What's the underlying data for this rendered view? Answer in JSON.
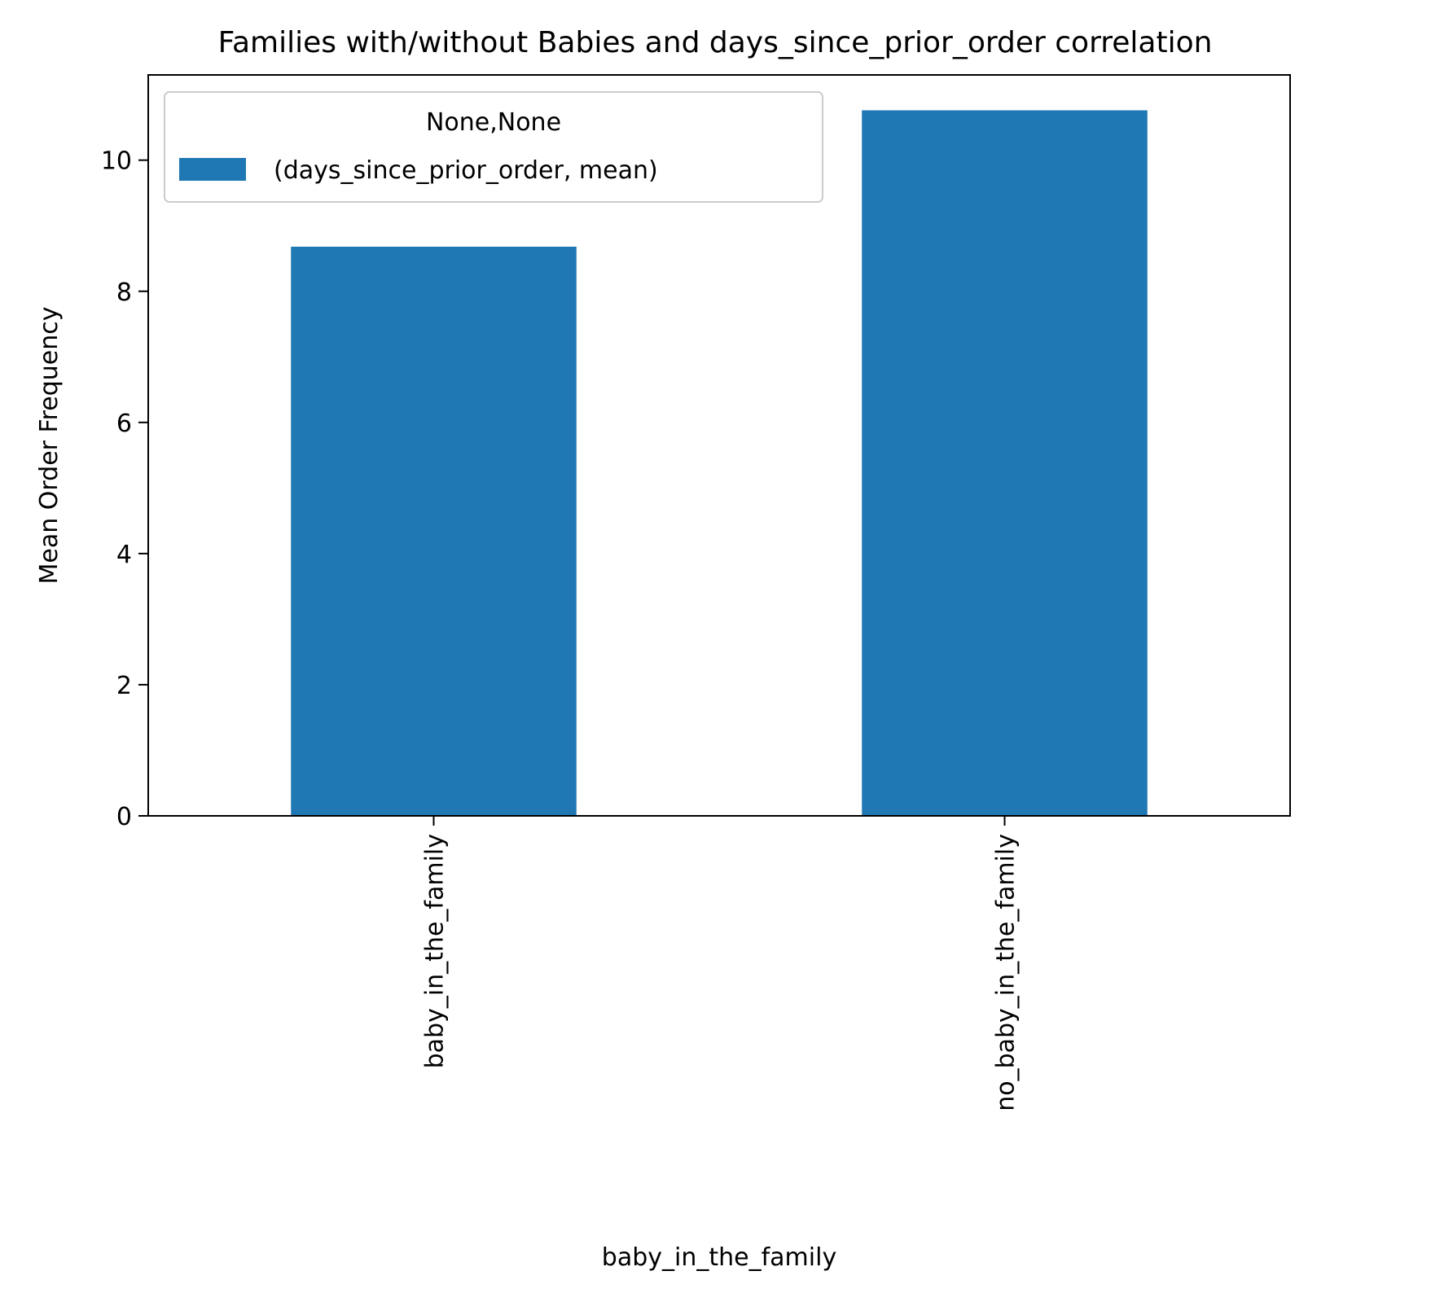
{
  "chart_data": {
    "type": "bar",
    "title": "Families with/without Babies and days_since_prior_order correlation",
    "xlabel": "baby_in_the_family",
    "ylabel": "Mean Order Frequency",
    "categories": [
      "baby_in_the_family",
      "no_baby_in_the_family"
    ],
    "series": [
      {
        "name": "(days_since_prior_order, mean)",
        "values": [
          8.68,
          10.76
        ],
        "color": "#1f77b4"
      }
    ],
    "ylim": [
      0,
      11.3
    ],
    "yticks": [
      0,
      2,
      4,
      6,
      8,
      10
    ],
    "grid": false,
    "legend": {
      "title": "None,None",
      "placement": "top-left"
    }
  }
}
